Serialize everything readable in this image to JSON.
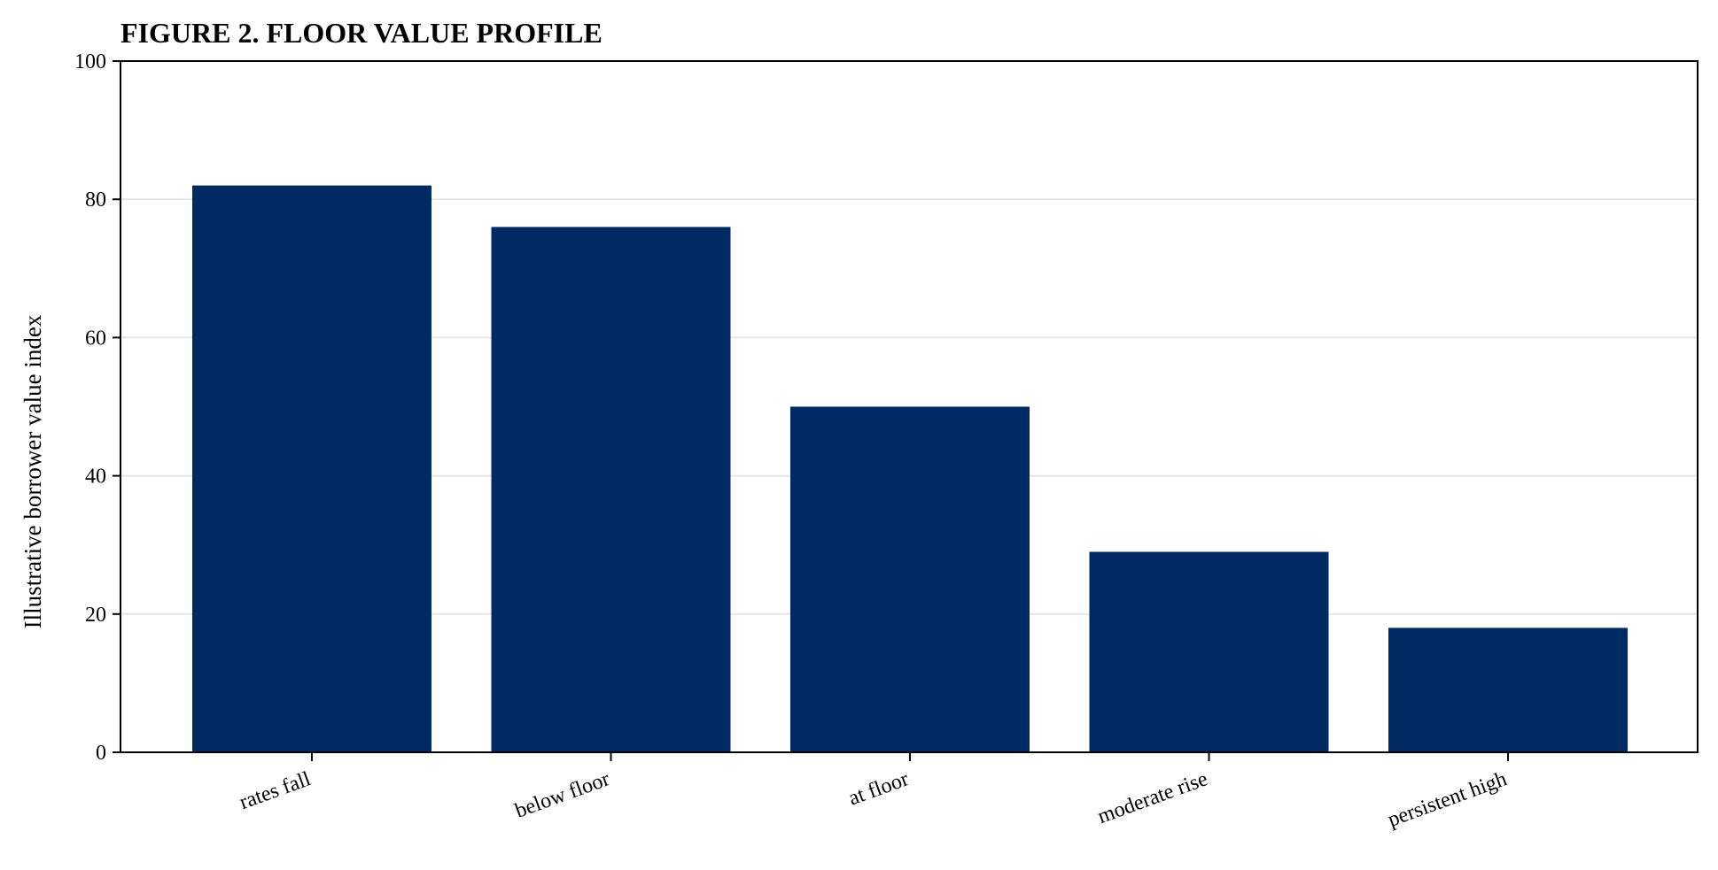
{
  "chart_data": {
    "type": "bar",
    "title": "FIGURE 2. FLOOR VALUE PROFILE",
    "xlabel": "",
    "ylabel": "Illustrative borrower value index",
    "categories": [
      "rates fall",
      "below floor",
      "at floor",
      "moderate rise",
      "persistent high"
    ],
    "values": [
      82,
      76,
      50,
      29,
      18
    ],
    "ylim": [
      0,
      100
    ],
    "yticks": [
      "0",
      "20",
      "40",
      "60",
      "80",
      "100"
    ],
    "grid": "horizontal",
    "bar_color": "#002a64"
  }
}
